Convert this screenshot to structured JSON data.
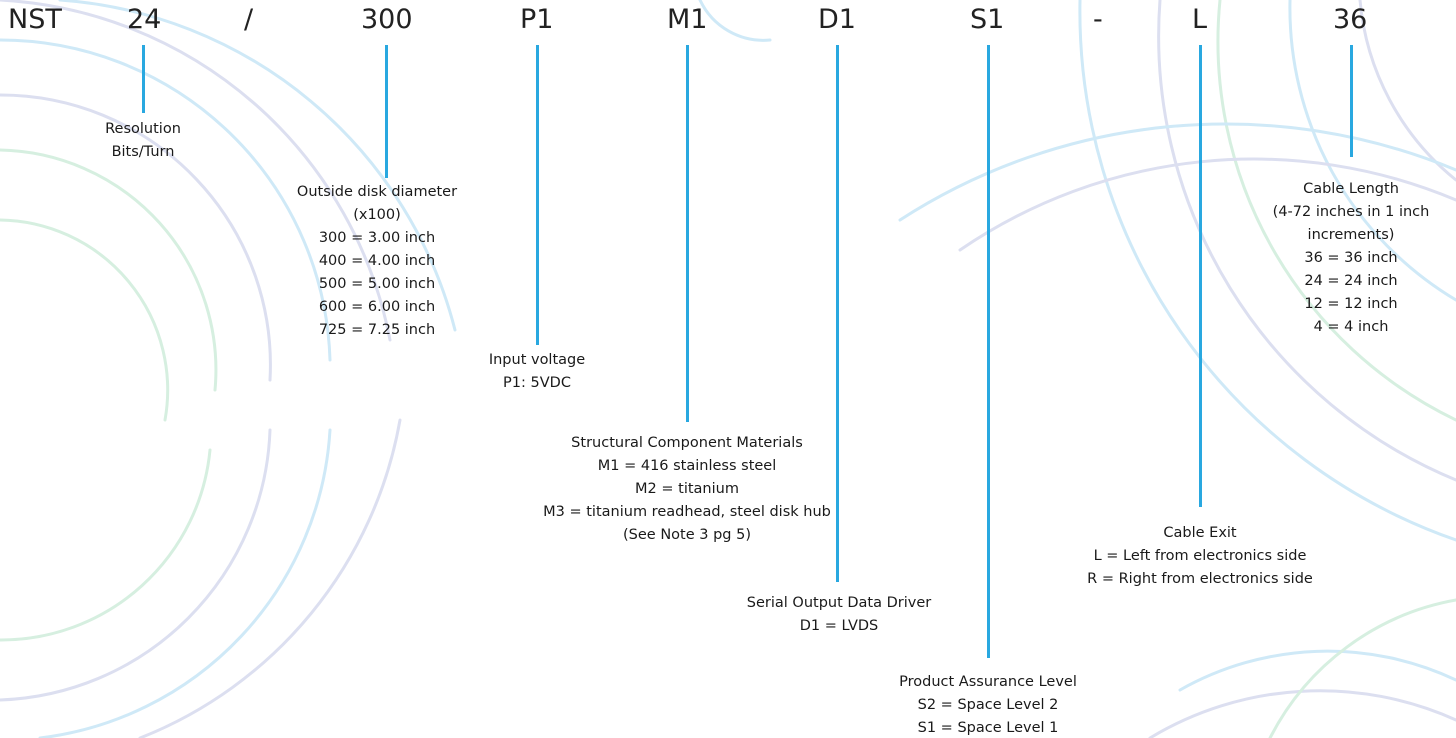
{
  "code": {
    "prefix": "NST",
    "resolution": "24",
    "slash": "/",
    "diameter": "300",
    "power": "P1",
    "material": "M1",
    "driver": "D1",
    "assurance": "S1",
    "dash": "-",
    "exit": "L",
    "length": "36"
  },
  "descriptions": {
    "resolution": [
      "Resolution",
      "Bits/Turn"
    ],
    "diameter": [
      "Outside disk diameter",
      "(x100)",
      "300 = 3.00 inch",
      "400 = 4.00 inch",
      "500 = 5.00 inch",
      "600 = 6.00 inch",
      "725 = 7.25 inch"
    ],
    "power": [
      "Input voltage",
      "P1: 5VDC"
    ],
    "material": [
      "Structural Component Materials",
      "M1 = 416 stainless steel",
      "M2 = titanium",
      "M3 = titanium readhead, steel disk hub",
      "(See Note 3 pg 5)"
    ],
    "driver": [
      "Serial Output Data Driver",
      "D1 = LVDS"
    ],
    "assurance": [
      "Product Assurance Level",
      "S2 = Space Level 2",
      "S1 = Space Level 1"
    ],
    "exit": [
      "Cable Exit",
      "L = Left from electronics side",
      "R = Right from electronics side"
    ],
    "length": [
      "Cable Length",
      "(4-72 inches in 1 inch",
      "increments)",
      "36 = 36 inch",
      "24 = 24 inch",
      "12 = 12 inch",
      "4 = 4 inch"
    ]
  },
  "colors": {
    "leader": "#29a8e0",
    "text": "#1a1a1a",
    "arc_blue": "#cfe9f7",
    "arc_green": "#d6efe0",
    "arc_purple": "#dcdff0"
  }
}
